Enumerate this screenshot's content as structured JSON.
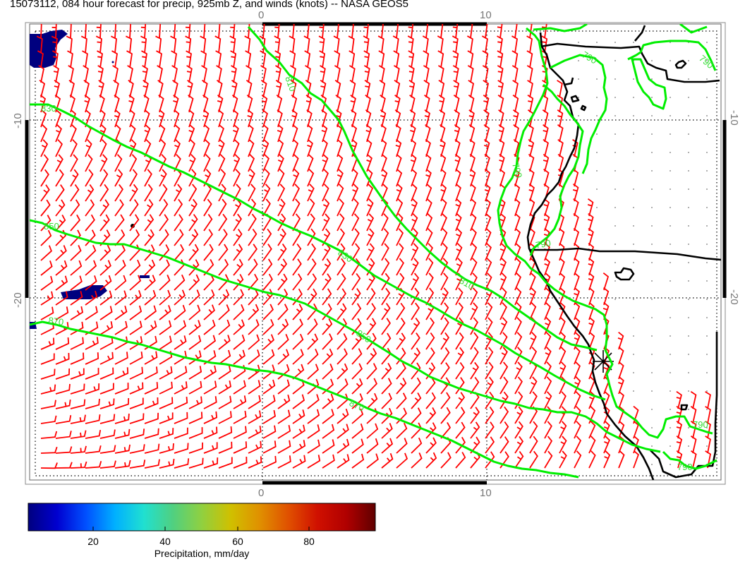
{
  "title": "15073112, 084 hour forecast for precip, 925mb Z, and winds (knots) -- NASA GEOS5",
  "map": {
    "lon_ticks": [
      "0",
      "10"
    ],
    "lat_ticks": [
      "-10",
      "-20"
    ],
    "contour_labels": [
      "830",
      "850",
      "870",
      "810",
      "790"
    ],
    "colors": {
      "wind_barbs": "#ff0000",
      "height_contours": "#00ee00",
      "coastline": "#000000",
      "precip_low": "#00007f"
    },
    "marker": "*"
  },
  "colorbar": {
    "tick_labels": [
      "20",
      "40",
      "60",
      "80"
    ],
    "label": "Precipitation, mm/day",
    "colors": [
      "#00007f",
      "#0000d0",
      "#0050ff",
      "#00b0ff",
      "#20e0d0",
      "#50d080",
      "#90d040",
      "#d0c000",
      "#e09000",
      "#e05000",
      "#d01000",
      "#b00000",
      "#600000"
    ]
  }
}
